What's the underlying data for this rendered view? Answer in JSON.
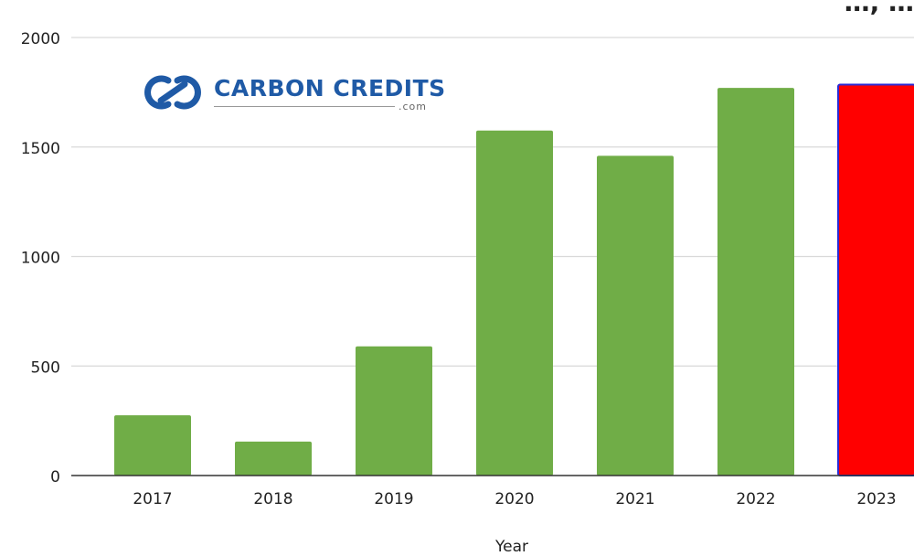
{
  "chart_data": {
    "type": "bar",
    "title": "…, …",
    "categories": [
      "2017",
      "2018",
      "2019",
      "2020",
      "2021",
      "2022",
      "2023"
    ],
    "values": [
      275,
      155,
      590,
      1575,
      1460,
      1770,
      1785
    ],
    "xlabel": "Year",
    "ylabel": "",
    "ylim": [
      0,
      2000
    ],
    "yticks": [
      0,
      500,
      1000,
      1500,
      2000
    ],
    "grid": true,
    "legend": "none",
    "colors": {
      "default_bar": "#70ad47",
      "highlight_bar": "#ff0000",
      "highlight_outline": "#2b2bd6",
      "grid": "#d9d9d9",
      "axis": "#333333"
    },
    "highlight_index": 6
  },
  "logo": {
    "word": "CARBON CREDITS",
    "domain": ".com",
    "icon": "linked-rings-logo-icon"
  }
}
